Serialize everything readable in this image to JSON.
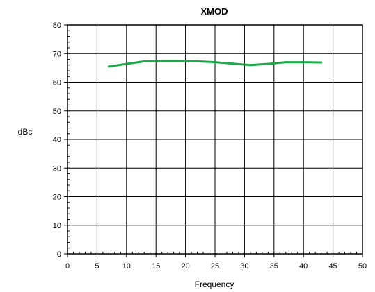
{
  "chart_data": {
    "type": "line",
    "title": "XMOD",
    "xlabel": "Frequency",
    "ylabel": "dBc",
    "xlim": [
      0,
      50
    ],
    "ylim": [
      0,
      80
    ],
    "x_ticks": [
      0,
      5,
      10,
      15,
      20,
      25,
      30,
      35,
      40,
      45,
      50
    ],
    "y_ticks": [
      0,
      10,
      20,
      30,
      40,
      50,
      60,
      70,
      80
    ],
    "grid": true,
    "series": [
      {
        "color": "#1ea84a",
        "x": [
          7,
          10,
          13,
          16,
          19,
          22,
          25,
          28,
          31,
          34,
          37,
          40,
          43
        ],
        "y": [
          65.5,
          66.4,
          67.3,
          67.4,
          67.4,
          67.3,
          67.0,
          66.5,
          66.0,
          66.4,
          67.0,
          67.0,
          66.9
        ]
      }
    ]
  }
}
